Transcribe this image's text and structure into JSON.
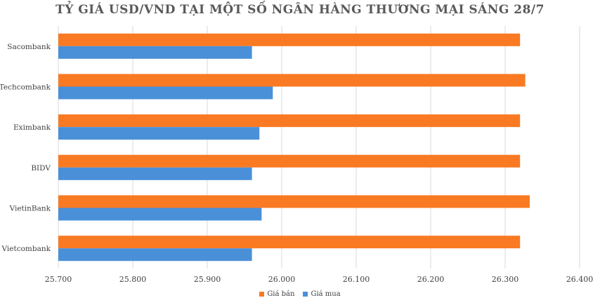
{
  "chart_data": {
    "type": "bar",
    "orientation": "horizontal",
    "title": "TỶ GIÁ USD/VND TẠI MỘT SỐ NGÂN HÀNG THƯƠNG MẠI SÁNG 28/7",
    "categories": [
      "Sacombank",
      "Techcombank",
      "Eximbank",
      "BIDV",
      "VietinBank",
      "Vietcombank"
    ],
    "series": [
      {
        "name": "Giá bán",
        "color": "#f97a22",
        "values": [
          26320,
          26327,
          26320,
          26320,
          26333,
          26320
        ]
      },
      {
        "name": "Giá mua",
        "color": "#4a90d9",
        "values": [
          25960,
          25988,
          25970,
          25960,
          25973,
          25960
        ]
      }
    ],
    "xlim": [
      25700,
      26400
    ],
    "xticks": [
      25700,
      25800,
      25900,
      26000,
      26100,
      26200,
      26300,
      26400
    ],
    "xtick_labels": [
      "25.700",
      "25.800",
      "25.900",
      "26.000",
      "26.100",
      "26.200",
      "26.300",
      "26.400"
    ],
    "grid": "vertical",
    "legend_position": "bottom"
  }
}
